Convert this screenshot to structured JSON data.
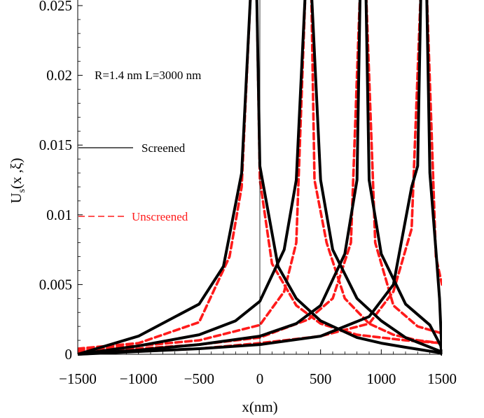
{
  "chart_data": {
    "type": "line",
    "xlabel": "x(nm)",
    "ylabel_main": "U",
    "ylabel_sub": "s",
    "ylabel_rest": "(x ,ξ)",
    "xlim": [
      -1500,
      1500
    ],
    "ylim": [
      0,
      0.025
    ],
    "xticks": [
      "−1500",
      "−1000",
      "−500",
      "0",
      "500",
      "1000",
      "1500"
    ],
    "xtick_values": [
      -1500,
      -1000,
      -500,
      0,
      500,
      1000,
      1500
    ],
    "yticks": [
      "0",
      "0.005",
      "0.01",
      "0.015",
      "0.02",
      "0.025"
    ],
    "ytick_values": [
      0,
      0.005,
      0.01,
      0.015,
      0.02,
      0.025
    ],
    "annotation": "R=1.4 nm  L=3000 nm",
    "grid": false,
    "legend_placement": "left",
    "colors": {
      "screened": "#000000",
      "unscreened": "#ff1a1a"
    },
    "legend": [
      {
        "label": "Screened",
        "style": "solid",
        "color": "#000000"
      },
      {
        "label": "Unscreened",
        "style": "dashed",
        "color": "#ff1a1a"
      }
    ],
    "source_positions": [
      -50,
      400,
      850,
      1350
    ],
    "series": [
      {
        "style": "screened",
        "peak_x": -50,
        "x": [
          -1500,
          -1000,
          -500,
          -300,
          -150,
          0,
          150,
          300,
          500,
          800,
          1000,
          1200,
          1490,
          1500
        ],
        "y": [
          0,
          0.0013,
          0.0036,
          0.0063,
          0.013,
          0.0135,
          0.0063,
          0.004,
          0.0024,
          0.0012,
          0.0008,
          0.0005,
          0.0001,
          0
        ]
      },
      {
        "style": "screened",
        "peak_x": 400,
        "x": [
          -1500,
          -1000,
          -500,
          -200,
          0,
          200,
          300,
          500,
          600,
          800,
          1000,
          1200,
          1490,
          1500
        ],
        "y": [
          0,
          0.0006,
          0.0014,
          0.0024,
          0.0038,
          0.0075,
          0.0125,
          0.0125,
          0.0075,
          0.004,
          0.0024,
          0.0012,
          0.0002,
          0
        ]
      },
      {
        "style": "screened",
        "peak_x": 850,
        "x": [
          -1500,
          -1000,
          -500,
          0,
          300,
          500,
          700,
          800,
          900,
          1000,
          1200,
          1400,
          1490,
          1500
        ],
        "y": [
          0,
          0.0003,
          0.0007,
          0.0013,
          0.0022,
          0.0035,
          0.0072,
          0.0125,
          0.0125,
          0.0072,
          0.0036,
          0.0021,
          0.0006,
          0
        ]
      },
      {
        "style": "screened",
        "peak_x": 1350,
        "x": [
          -1500,
          -1000,
          -500,
          0,
          500,
          900,
          1100,
          1250,
          1300,
          1400,
          1450,
          1480,
          1500
        ],
        "y": [
          0,
          0.0002,
          0.0004,
          0.0007,
          0.0013,
          0.0027,
          0.005,
          0.012,
          0.0135,
          0.013,
          0.0075,
          0.004,
          0
        ]
      },
      {
        "style": "unscreened",
        "peak_x": -50,
        "x": [
          -1500,
          -1000,
          -500,
          -250,
          -150,
          0,
          100,
          300,
          500,
          800,
          1000,
          1200,
          1500
        ],
        "y": [
          0.0004,
          0.0008,
          0.0023,
          0.007,
          0.012,
          0.0125,
          0.0065,
          0.0035,
          0.0022,
          0.0014,
          0.0012,
          0.001,
          0.0008
        ]
      },
      {
        "style": "unscreened",
        "peak_x": 400,
        "x": [
          -1500,
          -1000,
          -500,
          0,
          200,
          300,
          450,
          550,
          700,
          900,
          1100,
          1300,
          1500
        ],
        "y": [
          0.0003,
          0.0006,
          0.001,
          0.0021,
          0.0045,
          0.008,
          0.0125,
          0.008,
          0.004,
          0.0022,
          0.0014,
          0.001,
          0.0008
        ]
      },
      {
        "style": "unscreened",
        "peak_x": 850,
        "x": [
          -1500,
          -1000,
          -500,
          0,
          400,
          600,
          750,
          850,
          950,
          1100,
          1300,
          1500
        ],
        "y": [
          0.0002,
          0.0004,
          0.0007,
          0.0012,
          0.0025,
          0.004,
          0.008,
          0.0125,
          0.008,
          0.0035,
          0.002,
          0.0015
        ]
      },
      {
        "style": "unscreened",
        "peak_x": 1350,
        "x": [
          -1500,
          -1000,
          -500,
          0,
          500,
          900,
          1100,
          1250,
          1350,
          1450,
          1500
        ],
        "y": [
          0.0001,
          0.0002,
          0.0004,
          0.0008,
          0.0013,
          0.0022,
          0.0045,
          0.009,
          0.0125,
          0.007,
          0.005
        ]
      }
    ]
  }
}
